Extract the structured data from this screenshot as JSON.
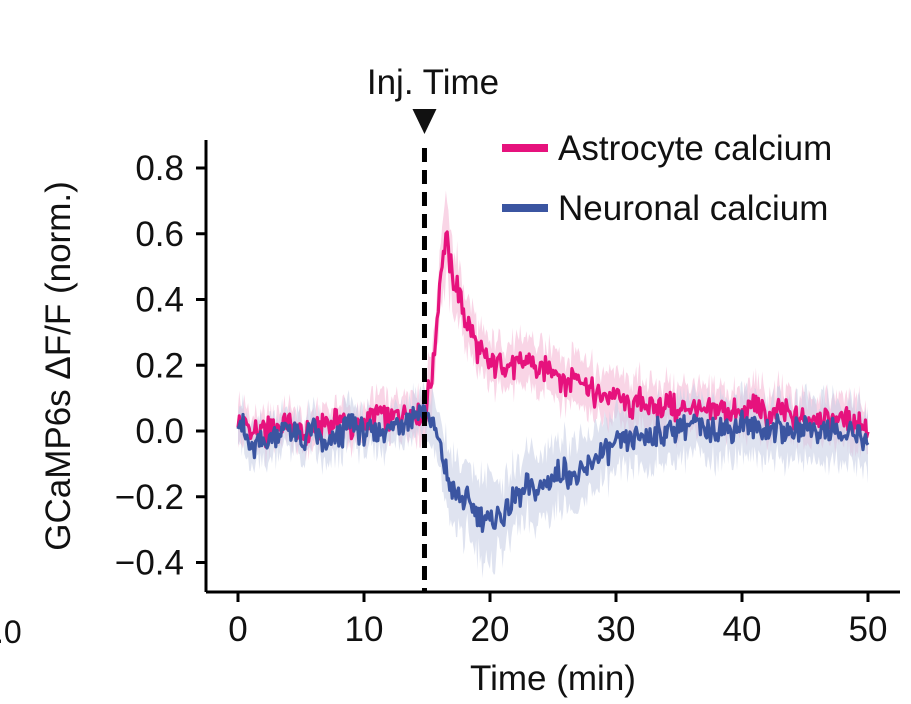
{
  "chart_data": {
    "type": "line",
    "xlabel": "Time (min)",
    "ylabel": "GCaMP6s ΔF/F (norm.)",
    "xlim": [
      -2.5,
      50.5
    ],
    "ylim": [
      -0.5,
      0.88
    ],
    "xticks": [
      0,
      10,
      20,
      30,
      40,
      50
    ],
    "xtick_labels": [
      "0",
      "10",
      "20",
      "30",
      "40",
      "50"
    ],
    "yticks": [
      -0.4,
      -0.2,
      0.0,
      0.2,
      0.4,
      0.6,
      0.8
    ],
    "ytick_labels": [
      "−0.4",
      "−0.2",
      "0.0",
      "0.2",
      "0.4",
      "0.6",
      "0.8"
    ],
    "partial_label": ".0",
    "annotation": {
      "label": "Inj. Time",
      "x": 14.8,
      "style": "dashed"
    },
    "legend_position": "top-right",
    "series": [
      {
        "name": "Astrocyte calcium",
        "color": "#e6127d",
        "band_color": "#f5b9d6",
        "x": [
          0,
          1,
          2,
          3,
          4,
          5,
          6,
          7,
          8,
          9,
          10,
          11,
          12,
          13,
          14,
          14.8,
          15.5,
          16,
          16.5,
          17,
          17.5,
          18,
          19,
          20,
          21,
          22,
          23,
          24,
          25,
          26,
          27,
          28,
          29,
          30,
          31,
          32,
          33,
          34,
          35,
          36,
          37,
          38,
          39,
          40,
          41,
          42,
          43,
          44,
          45,
          46,
          47,
          48,
          49,
          50
        ],
        "y": [
          0.02,
          0.0,
          -0.01,
          0.01,
          0.03,
          -0.02,
          0.0,
          0.02,
          0.04,
          0.01,
          0.02,
          0.06,
          0.03,
          0.05,
          0.07,
          0.04,
          0.2,
          0.45,
          0.6,
          0.46,
          0.43,
          0.35,
          0.25,
          0.2,
          0.21,
          0.19,
          0.22,
          0.17,
          0.2,
          0.14,
          0.18,
          0.12,
          0.1,
          0.11,
          0.07,
          0.1,
          0.06,
          0.09,
          0.05,
          0.08,
          0.04,
          0.07,
          0.06,
          0.05,
          0.08,
          0.04,
          0.06,
          0.04,
          0.03,
          0.05,
          0.03,
          0.04,
          0.02,
          0.02
        ],
        "err": [
          0.06,
          0.05,
          0.05,
          0.05,
          0.05,
          0.05,
          0.05,
          0.05,
          0.05,
          0.05,
          0.05,
          0.06,
          0.06,
          0.06,
          0.06,
          0.07,
          0.08,
          0.1,
          0.12,
          0.1,
          0.09,
          0.08,
          0.07,
          0.07,
          0.07,
          0.07,
          0.07,
          0.07,
          0.07,
          0.07,
          0.07,
          0.07,
          0.07,
          0.07,
          0.07,
          0.07,
          0.07,
          0.07,
          0.07,
          0.07,
          0.07,
          0.07,
          0.07,
          0.07,
          0.07,
          0.07,
          0.07,
          0.07,
          0.07,
          0.07,
          0.07,
          0.07,
          0.07,
          0.07
        ]
      },
      {
        "name": "Neuronal calcium",
        "color": "#3b55a1",
        "band_color": "#c9d1e6",
        "x": [
          0,
          1,
          2,
          3,
          4,
          5,
          6,
          7,
          8,
          9,
          10,
          11,
          12,
          13,
          14,
          14.8,
          15.5,
          16,
          16.5,
          17,
          17.5,
          18,
          19,
          20,
          21,
          22,
          23,
          24,
          25,
          26,
          27,
          28,
          29,
          30,
          31,
          32,
          33,
          34,
          35,
          36,
          37,
          38,
          39,
          40,
          41,
          42,
          43,
          44,
          45,
          46,
          47,
          48,
          49,
          50
        ],
        "y": [
          0.05,
          -0.06,
          -0.03,
          -0.02,
          0.02,
          -0.04,
          0.01,
          -0.05,
          -0.02,
          0.03,
          -0.01,
          0.0,
          0.01,
          0.03,
          0.05,
          0.07,
          0.02,
          -0.05,
          -0.13,
          -0.18,
          -0.2,
          -0.21,
          -0.25,
          -0.28,
          -0.26,
          -0.2,
          -0.17,
          -0.18,
          -0.14,
          -0.12,
          -0.15,
          -0.1,
          -0.06,
          -0.05,
          -0.03,
          -0.02,
          -0.01,
          0.0,
          0.01,
          0.03,
          0.0,
          0.02,
          0.0,
          0.03,
          0.01,
          0.0,
          0.01,
          -0.01,
          0.02,
          0.0,
          0.01,
          -0.02,
          0.0,
          -0.03
        ],
        "err": [
          0.06,
          0.06,
          0.06,
          0.06,
          0.06,
          0.06,
          0.06,
          0.06,
          0.06,
          0.06,
          0.06,
          0.06,
          0.06,
          0.06,
          0.06,
          0.07,
          0.08,
          0.09,
          0.1,
          0.1,
          0.11,
          0.11,
          0.11,
          0.12,
          0.11,
          0.1,
          0.1,
          0.1,
          0.1,
          0.1,
          0.1,
          0.09,
          0.09,
          0.09,
          0.09,
          0.09,
          0.09,
          0.09,
          0.09,
          0.09,
          0.09,
          0.09,
          0.09,
          0.09,
          0.09,
          0.09,
          0.09,
          0.09,
          0.09,
          0.09,
          0.09,
          0.09,
          0.09,
          0.09
        ]
      }
    ]
  }
}
